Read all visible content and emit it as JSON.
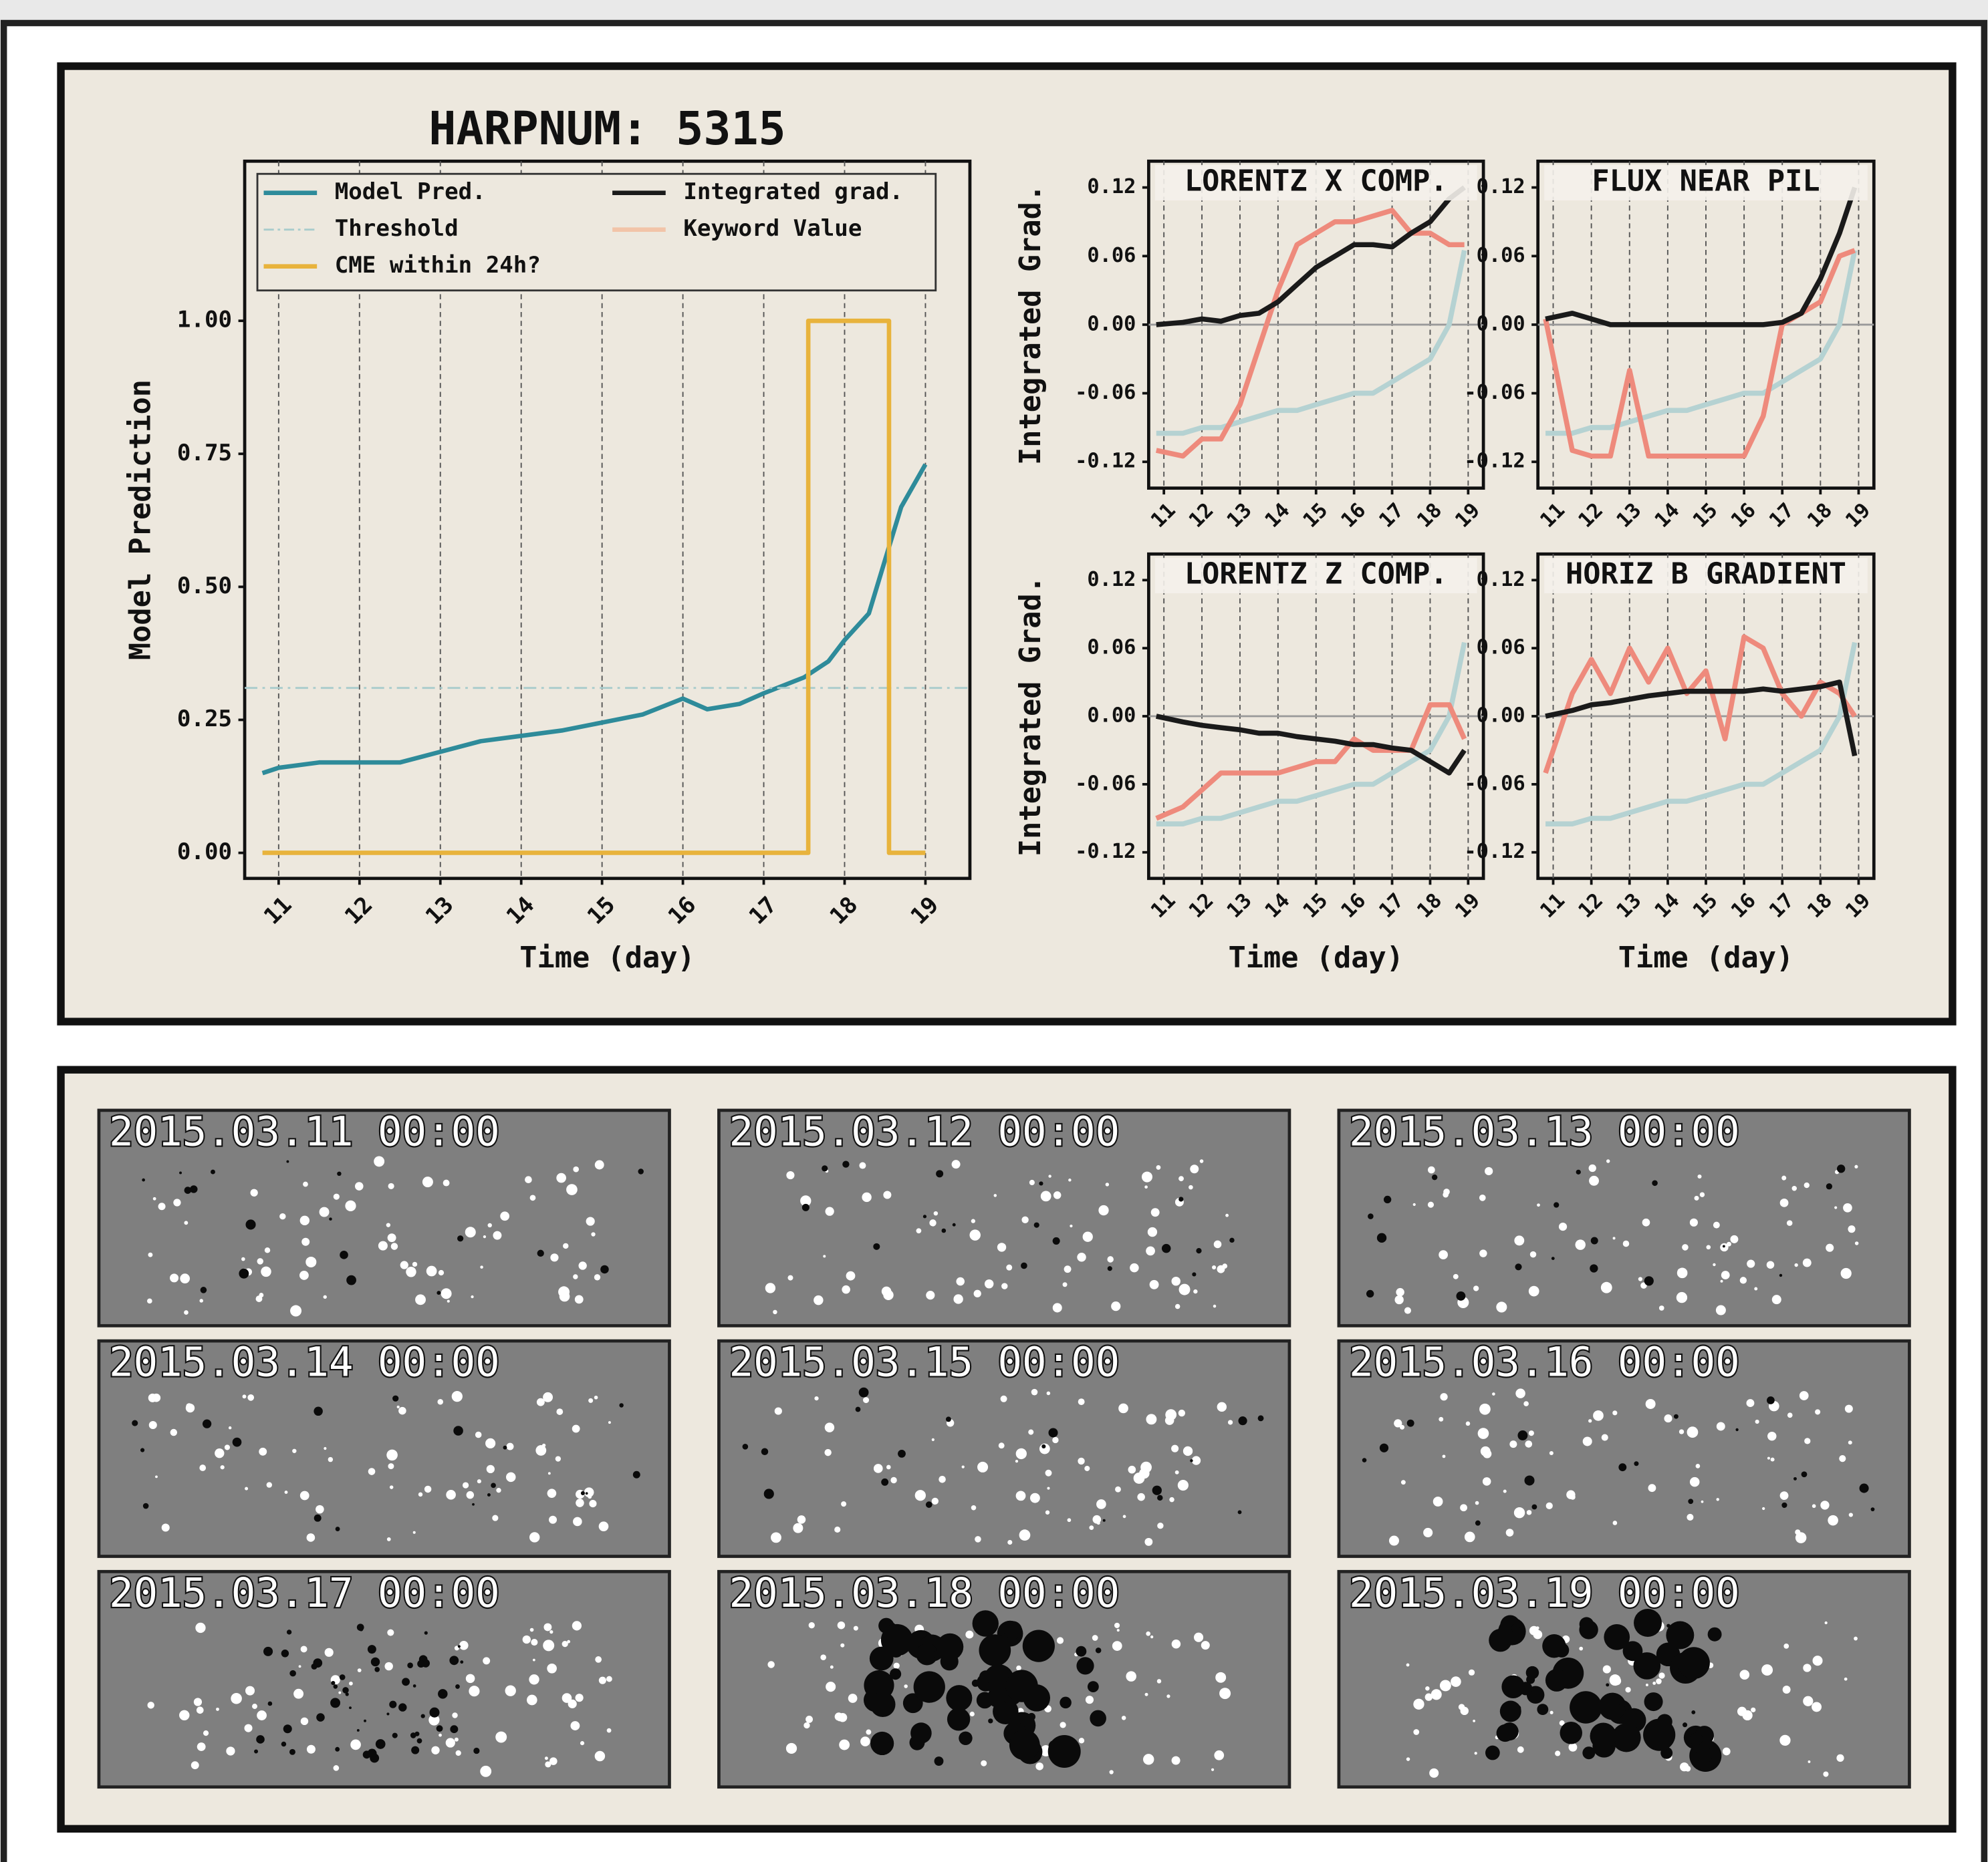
{
  "chart_data": [
    {
      "type": "line",
      "title": "HARPNUM: 5315",
      "xlabel": "Time (day)",
      "ylabel": "Model Prediction",
      "xlim": [
        10.58,
        19.55
      ],
      "ylim": [
        -0.048,
        1.3
      ],
      "xticks": [
        11,
        12,
        13,
        14,
        15,
        16,
        17,
        18,
        19
      ],
      "yticks": [
        {
          "value": 0,
          "label": "0.00"
        },
        {
          "value": 0.25,
          "label": "0.25"
        },
        {
          "value": 0.5,
          "label": "0.50"
        },
        {
          "value": 0.75,
          "label": "0.75"
        },
        {
          "value": 1,
          "label": "1.00"
        }
      ],
      "grid": "x",
      "legend": "upper",
      "series": [
        {
          "name": "Model Pred.",
          "color": "#2e8b9a",
          "x": [
            10.8,
            11,
            11.5,
            12,
            12.5,
            13,
            13.5,
            14,
            14.5,
            15,
            15.5,
            16,
            16.3,
            16.7,
            17,
            17.5,
            17.8,
            18,
            18.3,
            18.5,
            18.7,
            19
          ],
          "values": [
            0.15,
            0.16,
            0.17,
            0.17,
            0.17,
            0.19,
            0.21,
            0.22,
            0.23,
            0.245,
            0.26,
            0.29,
            0.27,
            0.28,
            0.3,
            0.33,
            0.36,
            0.4,
            0.45,
            0.55,
            0.65,
            0.73
          ]
        },
        {
          "name": "Threshold",
          "color": "#a9cccc",
          "hline": 0.31
        },
        {
          "name": "CME within 24h?",
          "color": "#e8b33c",
          "x": [
            10.8,
            17.55,
            17.55,
            18.55,
            18.55,
            19
          ],
          "values": [
            0,
            0,
            1,
            1,
            0,
            0
          ]
        }
      ],
      "legend_extra": [
        {
          "name": "Integrated grad.",
          "color": "#1a1a1a"
        },
        {
          "name": "Keyword Value",
          "color": "#f2c4a8"
        }
      ]
    },
    {
      "type": "line",
      "title": "LORENTZ X COMP.",
      "ylabel": "Integrated Grad.",
      "xlim": [
        10.6,
        19.4
      ],
      "ylim": [
        -0.143,
        0.143
      ],
      "xticks": [
        11,
        12,
        13,
        14,
        15,
        16,
        17,
        18,
        19
      ],
      "yticks": [
        -0.12,
        -0.06,
        {
          "value": 0,
          "label": "0.00"
        },
        0.06,
        0.12
      ],
      "grid": "x",
      "hline": 0,
      "x": [
        10.8,
        11.5,
        12,
        12.5,
        13,
        13.5,
        14,
        14.5,
        15,
        15.5,
        16,
        16.5,
        17,
        17.5,
        18,
        18.5,
        18.9
      ],
      "series": [
        {
          "name": "Model Pred.",
          "color": "#b5d2d2",
          "values": [
            -0.095,
            -0.095,
            -0.09,
            -0.09,
            -0.085,
            -0.08,
            -0.075,
            -0.075,
            -0.07,
            -0.065,
            -0.06,
            -0.06,
            -0.05,
            -0.04,
            -0.03,
            0.0,
            0.065
          ]
        },
        {
          "name": "Keyword Value",
          "color": "#ee8a7c",
          "values": [
            -0.11,
            -0.115,
            -0.1,
            -0.1,
            -0.07,
            -0.02,
            0.03,
            0.07,
            0.08,
            0.09,
            0.09,
            0.095,
            0.1,
            0.08,
            0.08,
            0.07,
            0.07
          ]
        },
        {
          "name": "Integrated grad.",
          "color": "#1a1a1a",
          "values": [
            0,
            0.002,
            0.005,
            0.003,
            0.008,
            0.01,
            0.02,
            0.035,
            0.05,
            0.06,
            0.07,
            0.07,
            0.068,
            0.08,
            0.09,
            0.11,
            0.12
          ]
        }
      ]
    },
    {
      "type": "line",
      "title": "FLUX NEAR PIL",
      "xlim": [
        10.6,
        19.4
      ],
      "ylim": [
        -0.143,
        0.143
      ],
      "xticks": [
        11,
        12,
        13,
        14,
        15,
        16,
        17,
        18,
        19
      ],
      "yticks": [
        -0.12,
        -0.06,
        {
          "value": 0,
          "label": "0.00"
        },
        0.06,
        0.12
      ],
      "grid": "x",
      "hline": 0,
      "x": [
        10.8,
        11.5,
        12,
        12.5,
        13,
        13.5,
        14,
        14.5,
        15,
        15.5,
        16,
        16.5,
        17,
        17.5,
        18,
        18.5,
        18.9
      ],
      "series": [
        {
          "name": "Model Pred.",
          "color": "#b5d2d2",
          "values": [
            -0.095,
            -0.095,
            -0.09,
            -0.09,
            -0.085,
            -0.08,
            -0.075,
            -0.075,
            -0.07,
            -0.065,
            -0.06,
            -0.06,
            -0.05,
            -0.04,
            -0.03,
            0.0,
            0.065
          ]
        },
        {
          "name": "Keyword Value",
          "color": "#ee8a7c",
          "values": [
            0.005,
            -0.11,
            -0.115,
            -0.115,
            -0.04,
            -0.115,
            -0.115,
            -0.115,
            -0.115,
            -0.115,
            -0.115,
            -0.08,
            0.0,
            0.01,
            0.02,
            0.06,
            0.065
          ]
        },
        {
          "name": "Integrated grad.",
          "color": "#1a1a1a",
          "values": [
            0.005,
            0.01,
            0.005,
            0,
            0,
            0,
            0,
            0,
            0,
            0,
            0,
            0,
            0.002,
            0.01,
            0.04,
            0.08,
            0.12
          ]
        }
      ]
    },
    {
      "type": "line",
      "title": "LORENTZ Z COMP.",
      "ylabel": "Integrated Grad.",
      "xlabel": "Time (day)",
      "xlim": [
        10.6,
        19.4
      ],
      "ylim": [
        -0.143,
        0.143
      ],
      "xticks": [
        11,
        12,
        13,
        14,
        15,
        16,
        17,
        18,
        19
      ],
      "yticks": [
        -0.12,
        -0.06,
        {
          "value": 0,
          "label": "0.00"
        },
        0.06,
        0.12
      ],
      "grid": "x",
      "hline": 0,
      "x": [
        10.8,
        11.5,
        12,
        12.5,
        13,
        13.5,
        14,
        14.5,
        15,
        15.5,
        16,
        16.5,
        17,
        17.5,
        18,
        18.5,
        18.9
      ],
      "series": [
        {
          "name": "Model Pred.",
          "color": "#b5d2d2",
          "values": [
            -0.095,
            -0.095,
            -0.09,
            -0.09,
            -0.085,
            -0.08,
            -0.075,
            -0.075,
            -0.07,
            -0.065,
            -0.06,
            -0.06,
            -0.05,
            -0.04,
            -0.03,
            0.0,
            0.065
          ]
        },
        {
          "name": "Keyword Value",
          "color": "#ee8a7c",
          "values": [
            -0.09,
            -0.08,
            -0.065,
            -0.05,
            -0.05,
            -0.05,
            -0.05,
            -0.045,
            -0.04,
            -0.04,
            -0.02,
            -0.03,
            -0.03,
            -0.03,
            0.01,
            0.01,
            -0.02
          ]
        },
        {
          "name": "Integrated grad.",
          "color": "#1a1a1a",
          "values": [
            0,
            -0.005,
            -0.008,
            -0.01,
            -0.012,
            -0.015,
            -0.015,
            -0.018,
            -0.02,
            -0.022,
            -0.025,
            -0.025,
            -0.028,
            -0.03,
            -0.04,
            -0.05,
            -0.03
          ]
        }
      ]
    },
    {
      "type": "line",
      "title": "HORIZ B GRADIENT",
      "xlabel": "Time (day)",
      "xlim": [
        10.6,
        19.4
      ],
      "ylim": [
        -0.143,
        0.143
      ],
      "xticks": [
        11,
        12,
        13,
        14,
        15,
        16,
        17,
        18,
        19
      ],
      "yticks": [
        -0.12,
        -0.06,
        {
          "value": 0,
          "label": "0.00"
        },
        0.06,
        0.12
      ],
      "grid": "x",
      "hline": 0,
      "x": [
        10.8,
        11.5,
        12,
        12.5,
        13,
        13.5,
        14,
        14.5,
        15,
        15.5,
        16,
        16.5,
        17,
        17.5,
        18,
        18.5,
        18.9
      ],
      "series": [
        {
          "name": "Model Pred.",
          "color": "#b5d2d2",
          "values": [
            -0.095,
            -0.095,
            -0.09,
            -0.09,
            -0.085,
            -0.08,
            -0.075,
            -0.075,
            -0.07,
            -0.065,
            -0.06,
            -0.06,
            -0.05,
            -0.04,
            -0.03,
            0.0,
            0.065
          ]
        },
        {
          "name": "Keyword Value",
          "color": "#ee8a7c",
          "values": [
            -0.05,
            0.02,
            0.05,
            0.02,
            0.06,
            0.03,
            0.06,
            0.02,
            0.04,
            -0.02,
            0.07,
            0.06,
            0.02,
            0.0,
            0.03,
            0.02,
            0.0
          ]
        },
        {
          "name": "Integrated grad.",
          "color": "#1a1a1a",
          "values": [
            0,
            0.005,
            0.01,
            0.012,
            0.015,
            0.018,
            0.02,
            0.022,
            0.022,
            0.022,
            0.022,
            0.024,
            0.022,
            0.024,
            0.026,
            0.03,
            -0.035
          ]
        }
      ]
    }
  ],
  "magnetograms": [
    "2015.03.11 00:00",
    "2015.03.12 00:00",
    "2015.03.13 00:00",
    "2015.03.14 00:00",
    "2015.03.15 00:00",
    "2015.03.16 00:00",
    "2015.03.17 00:00",
    "2015.03.18 00:00",
    "2015.03.19 00:00"
  ]
}
